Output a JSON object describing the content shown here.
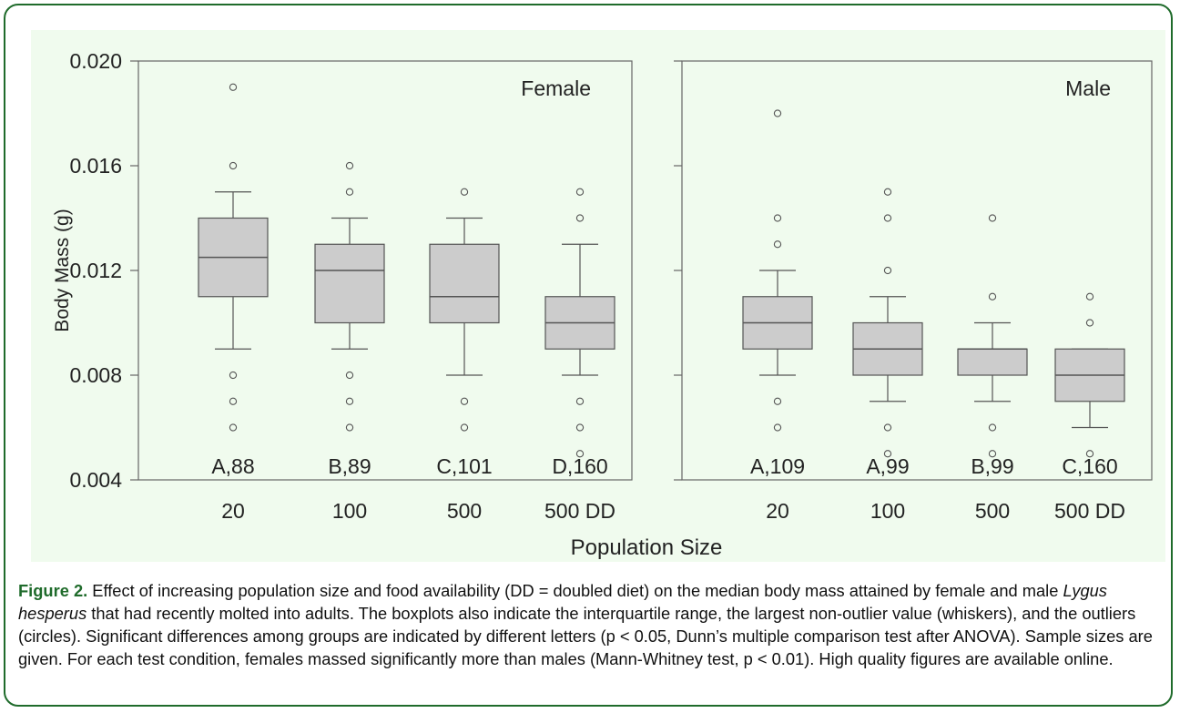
{
  "caption": {
    "label": "Figure 2.",
    "text_1": " Effect of increasing population size and food availability (DD = doubled diet) on the median body mass attained by female and male ",
    "species": "Lygus hesperus",
    "text_2": "  that had recently molted into adults. The boxplots also indicate the interquartile range, the largest non-outlier value (whiskers), and the outliers (circles). Significant differences among groups are indicated by different letters (p < 0.05, Dunn’s multiple comparison test after ANOVA). Sample sizes are given. For each test condition, females massed significantly more than males (Mann-Whitney test, p < 0.01).  High quality figures are available online."
  },
  "colors": {
    "frame": "#1f6b2b",
    "figure_bg": "#f0fbee",
    "box_fill": "#cccccc",
    "caption_label": "#1f6b2b"
  },
  "chart_data": {
    "type": "boxplot",
    "xlabel": "Population Size",
    "ylabel": "Body Mass (g)",
    "ylim": [
      0.004,
      0.02
    ],
    "yticks": [
      "0.004",
      "0.008",
      "0.012",
      "0.016",
      "0.020"
    ],
    "categories": [
      "20",
      "100",
      "500",
      "500 DD"
    ],
    "panels": [
      {
        "name": "Female",
        "groups": [
          {
            "category": "20",
            "label": "A,88",
            "q1": 0.011,
            "median": 0.0125,
            "q3": 0.014,
            "whisker_low": 0.009,
            "whisker_high": 0.015,
            "outliers": [
              0.019,
              0.016,
              0.008,
              0.007,
              0.006
            ]
          },
          {
            "category": "100",
            "label": "B,89",
            "q1": 0.01,
            "median": 0.012,
            "q3": 0.013,
            "whisker_low": 0.009,
            "whisker_high": 0.014,
            "outliers": [
              0.016,
              0.015,
              0.008,
              0.007,
              0.006
            ]
          },
          {
            "category": "500",
            "label": "C,101",
            "q1": 0.01,
            "median": 0.011,
            "q3": 0.013,
            "whisker_low": 0.008,
            "whisker_high": 0.014,
            "outliers": [
              0.015,
              0.007,
              0.006
            ]
          },
          {
            "category": "500 DD",
            "label": "D,160",
            "q1": 0.009,
            "median": 0.01,
            "q3": 0.011,
            "whisker_low": 0.008,
            "whisker_high": 0.013,
            "outliers": [
              0.015,
              0.014,
              0.007,
              0.006,
              0.005
            ]
          }
        ]
      },
      {
        "name": "Male",
        "groups": [
          {
            "category": "20",
            "label": "A,109",
            "q1": 0.009,
            "median": 0.01,
            "q3": 0.011,
            "whisker_low": 0.008,
            "whisker_high": 0.012,
            "outliers": [
              0.018,
              0.014,
              0.013,
              0.007,
              0.006
            ]
          },
          {
            "category": "100",
            "label": "A,99",
            "q1": 0.008,
            "median": 0.009,
            "q3": 0.01,
            "whisker_low": 0.007,
            "whisker_high": 0.011,
            "outliers": [
              0.015,
              0.014,
              0.012,
              0.006,
              0.005
            ]
          },
          {
            "category": "500",
            "label": "B,99",
            "q1": 0.008,
            "median": 0.009,
            "q3": 0.009,
            "whisker_low": 0.007,
            "whisker_high": 0.01,
            "outliers": [
              0.014,
              0.011,
              0.006,
              0.005
            ]
          },
          {
            "category": "500 DD",
            "label": "C,160",
            "q1": 0.007,
            "median": 0.008,
            "q3": 0.009,
            "whisker_low": 0.006,
            "whisker_high": 0.009,
            "outliers": [
              0.011,
              0.01,
              0.005
            ]
          }
        ]
      }
    ]
  }
}
